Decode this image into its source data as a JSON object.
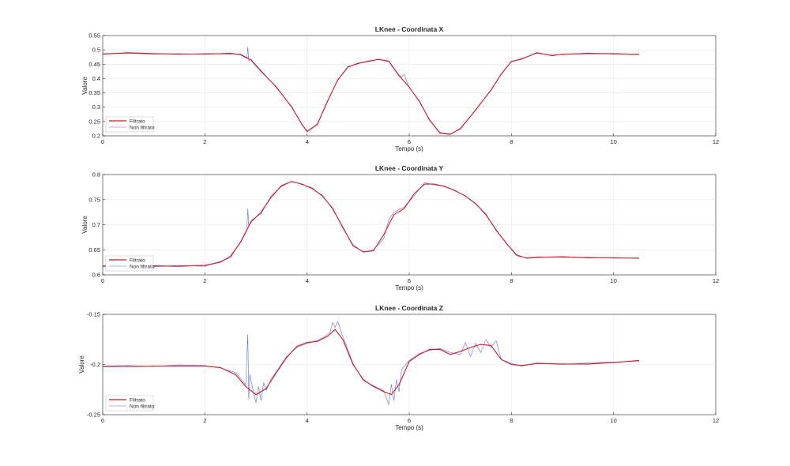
{
  "colors": {
    "filtered": "#d4161f",
    "raw": "#5a6fe0",
    "grid": "#e6e6e6",
    "axes": "#262626"
  },
  "chart_data": [
    {
      "type": "line",
      "title": "LKnee - Coordinata X",
      "xlabel": "Tempo (s)",
      "ylabel": "Valore",
      "xlim": [
        0,
        12
      ],
      "ylim": [
        0.2,
        0.55
      ],
      "xticks": [
        0,
        2,
        4,
        6,
        8,
        10,
        12
      ],
      "yticks": [
        0.2,
        0.25,
        0.3,
        0.35,
        0.4,
        0.45,
        0.5,
        0.55
      ],
      "ytick_labels": [
        "0.2",
        "0.25",
        "0.3",
        "0.35",
        "0.4",
        "0.45",
        "0.5",
        "0.55"
      ],
      "grid": true,
      "legend": {
        "location": "bottom-left",
        "entries": [
          "Filtrato",
          "Non filtrato"
        ]
      },
      "series": [
        {
          "name": "Filtrato",
          "x": [
            0,
            0.5,
            1.0,
            1.5,
            2.0,
            2.5,
            2.7,
            2.9,
            3.1,
            3.4,
            3.7,
            3.9,
            4.0,
            4.2,
            4.4,
            4.6,
            4.8,
            5.0,
            5.2,
            5.4,
            5.6,
            5.8,
            6.0,
            6.2,
            6.4,
            6.6,
            6.8,
            7.0,
            7.3,
            7.6,
            7.8,
            8.0,
            8.2,
            8.5,
            8.8,
            9.0,
            9.5,
            10.0,
            10.5
          ],
          "y": [
            0.485,
            0.49,
            0.487,
            0.485,
            0.486,
            0.487,
            0.484,
            0.465,
            0.425,
            0.37,
            0.3,
            0.24,
            0.215,
            0.24,
            0.32,
            0.395,
            0.44,
            0.453,
            0.46,
            0.467,
            0.46,
            0.41,
            0.37,
            0.32,
            0.255,
            0.21,
            0.205,
            0.225,
            0.29,
            0.36,
            0.415,
            0.46,
            0.468,
            0.49,
            0.48,
            0.485,
            0.487,
            0.487,
            0.484
          ]
        },
        {
          "name": "Non filtrato",
          "x": [
            0,
            0.5,
            1.0,
            1.5,
            2.0,
            2.5,
            2.7,
            2.82,
            2.84,
            2.86,
            2.9,
            3.1,
            3.4,
            3.7,
            3.9,
            4.0,
            4.2,
            4.4,
            4.6,
            4.8,
            5.0,
            5.2,
            5.4,
            5.6,
            5.8,
            5.85,
            5.9,
            6.0,
            6.2,
            6.4,
            6.6,
            6.8,
            7.0,
            7.3,
            7.6,
            7.8,
            8.0,
            8.2,
            8.5,
            8.8,
            9.0,
            9.5,
            10.0,
            10.5
          ],
          "y": [
            0.487,
            0.488,
            0.485,
            0.487,
            0.484,
            0.489,
            0.482,
            0.47,
            0.51,
            0.462,
            0.468,
            0.428,
            0.368,
            0.302,
            0.238,
            0.218,
            0.238,
            0.322,
            0.393,
            0.442,
            0.451,
            0.462,
            0.466,
            0.462,
            0.412,
            0.405,
            0.415,
            0.368,
            0.322,
            0.253,
            0.212,
            0.207,
            0.223,
            0.292,
            0.358,
            0.417,
            0.458,
            0.47,
            0.488,
            0.482,
            0.484,
            0.489,
            0.485,
            0.485
          ]
        }
      ]
    },
    {
      "type": "line",
      "title": "LKnee - Coordinata Y",
      "xlabel": "Tempo (s)",
      "ylabel": "Valore",
      "xlim": [
        0,
        12
      ],
      "ylim": [
        0.6,
        0.8
      ],
      "xticks": [
        0,
        2,
        4,
        6,
        8,
        10,
        12
      ],
      "yticks": [
        0.6,
        0.65,
        0.7,
        0.75,
        0.8
      ],
      "ytick_labels": [
        "0.6",
        "0.65",
        "0.7",
        "0.75",
        "0.8"
      ],
      "grid": true,
      "legend": {
        "location": "bottom-left",
        "entries": [
          "Filtrato",
          "Non filtrato"
        ]
      },
      "series": [
        {
          "name": "Filtrato",
          "x": [
            0,
            0.5,
            1.0,
            1.5,
            2.0,
            2.3,
            2.5,
            2.7,
            2.9,
            3.1,
            3.3,
            3.5,
            3.7,
            3.9,
            4.1,
            4.3,
            4.5,
            4.7,
            4.9,
            5.1,
            5.3,
            5.5,
            5.7,
            5.9,
            6.1,
            6.3,
            6.5,
            6.7,
            6.9,
            7.1,
            7.3,
            7.5,
            7.7,
            7.9,
            8.1,
            8.3,
            8.5,
            9.0,
            9.5,
            10.0,
            10.5
          ],
          "y": [
            0.617,
            0.619,
            0.618,
            0.617,
            0.619,
            0.625,
            0.637,
            0.665,
            0.705,
            0.725,
            0.755,
            0.778,
            0.786,
            0.781,
            0.772,
            0.758,
            0.732,
            0.695,
            0.658,
            0.646,
            0.648,
            0.68,
            0.72,
            0.732,
            0.762,
            0.781,
            0.781,
            0.776,
            0.768,
            0.757,
            0.742,
            0.72,
            0.69,
            0.663,
            0.64,
            0.633,
            0.635,
            0.636,
            0.634,
            0.634,
            0.633
          ]
        },
        {
          "name": "Non filtrato",
          "x": [
            0,
            0.5,
            1.0,
            1.5,
            2.0,
            2.3,
            2.5,
            2.7,
            2.82,
            2.84,
            2.86,
            2.9,
            3.1,
            3.3,
            3.5,
            3.7,
            3.9,
            4.1,
            4.3,
            4.5,
            4.7,
            4.9,
            5.1,
            5.3,
            5.5,
            5.6,
            5.7,
            5.9,
            6.1,
            6.3,
            6.5,
            6.7,
            6.9,
            7.1,
            7.3,
            7.5,
            7.7,
            7.9,
            8.1,
            8.3,
            8.5,
            9.0,
            9.5,
            10.0,
            10.5
          ],
          "y": [
            0.618,
            0.62,
            0.616,
            0.619,
            0.617,
            0.627,
            0.634,
            0.667,
            0.69,
            0.732,
            0.698,
            0.708,
            0.722,
            0.758,
            0.776,
            0.787,
            0.78,
            0.774,
            0.756,
            0.734,
            0.693,
            0.66,
            0.645,
            0.65,
            0.672,
            0.71,
            0.725,
            0.735,
            0.758,
            0.784,
            0.779,
            0.777,
            0.767,
            0.758,
            0.741,
            0.722,
            0.688,
            0.664,
            0.638,
            0.634,
            0.636,
            0.635,
            0.635,
            0.633,
            0.634
          ]
        }
      ]
    },
    {
      "type": "line",
      "title": "LKnee - Coordinata Z",
      "xlabel": "Tempo (s)",
      "ylabel": "Valore",
      "xlim": [
        0,
        12
      ],
      "ylim": [
        -0.25,
        -0.15
      ],
      "xticks": [
        0,
        2,
        4,
        6,
        8,
        10,
        12
      ],
      "yticks": [
        -0.25,
        -0.2,
        -0.15
      ],
      "ytick_labels": [
        "-0.25",
        "-0.2",
        "-0.15"
      ],
      "grid": true,
      "legend": {
        "location": "bottom-left",
        "entries": [
          "Filtrato",
          "Non filtrato"
        ]
      },
      "series": [
        {
          "name": "Filtrato",
          "x": [
            0,
            0.5,
            1.0,
            1.5,
            2.0,
            2.3,
            2.6,
            2.8,
            3.0,
            3.2,
            3.4,
            3.6,
            3.8,
            4.0,
            4.2,
            4.4,
            4.55,
            4.7,
            4.9,
            5.1,
            5.3,
            5.5,
            5.65,
            5.8,
            6.0,
            6.2,
            6.4,
            6.6,
            6.8,
            7.0,
            7.2,
            7.4,
            7.6,
            7.8,
            8.0,
            8.2,
            8.5,
            9.0,
            9.5,
            10.0,
            10.5
          ],
          "y": [
            -0.202,
            -0.202,
            -0.2015,
            -0.2015,
            -0.2015,
            -0.203,
            -0.21,
            -0.222,
            -0.23,
            -0.224,
            -0.208,
            -0.193,
            -0.182,
            -0.178,
            -0.177,
            -0.172,
            -0.165,
            -0.175,
            -0.2,
            -0.215,
            -0.222,
            -0.227,
            -0.23,
            -0.22,
            -0.197,
            -0.19,
            -0.185,
            -0.185,
            -0.19,
            -0.187,
            -0.183,
            -0.18,
            -0.181,
            -0.195,
            -0.2,
            -0.201,
            -0.199,
            -0.1995,
            -0.1995,
            -0.198,
            -0.196
          ]
        },
        {
          "name": "Non filtrato",
          "x": [
            0,
            0.5,
            1.0,
            1.5,
            2.0,
            2.3,
            2.6,
            2.8,
            2.84,
            2.86,
            2.88,
            2.92,
            3.0,
            3.05,
            3.1,
            3.15,
            3.2,
            3.3,
            3.4,
            3.6,
            3.8,
            4.0,
            4.2,
            4.35,
            4.45,
            4.5,
            4.55,
            4.6,
            4.7,
            4.9,
            5.1,
            5.3,
            5.5,
            5.6,
            5.65,
            5.7,
            5.75,
            5.8,
            5.85,
            6.0,
            6.2,
            6.4,
            6.6,
            6.8,
            7.0,
            7.1,
            7.2,
            7.3,
            7.4,
            7.5,
            7.6,
            7.7,
            7.8,
            8.0,
            8.2,
            8.5,
            9.0,
            9.5,
            10.0,
            10.5
          ],
          "y": [
            -0.2015,
            -0.201,
            -0.202,
            -0.2005,
            -0.201,
            -0.2035,
            -0.208,
            -0.22,
            -0.17,
            -0.235,
            -0.21,
            -0.22,
            -0.238,
            -0.222,
            -0.236,
            -0.218,
            -0.226,
            -0.214,
            -0.207,
            -0.192,
            -0.183,
            -0.179,
            -0.176,
            -0.172,
            -0.168,
            -0.158,
            -0.163,
            -0.157,
            -0.172,
            -0.199,
            -0.216,
            -0.221,
            -0.226,
            -0.24,
            -0.22,
            -0.236,
            -0.215,
            -0.227,
            -0.205,
            -0.196,
            -0.189,
            -0.186,
            -0.184,
            -0.188,
            -0.19,
            -0.178,
            -0.192,
            -0.179,
            -0.188,
            -0.175,
            -0.183,
            -0.176,
            -0.195,
            -0.199,
            -0.2015,
            -0.1985,
            -0.2,
            -0.1985,
            -0.1975,
            -0.1965
          ]
        }
      ]
    }
  ]
}
